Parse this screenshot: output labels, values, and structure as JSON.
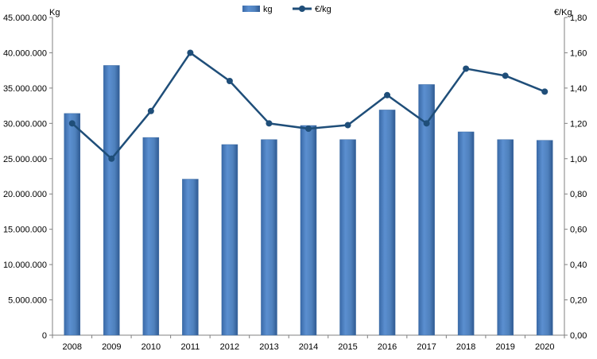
{
  "chart_data": {
    "type": "bar",
    "categories": [
      "2008",
      "2009",
      "2010",
      "2011",
      "2012",
      "2013",
      "2014",
      "2015",
      "2016",
      "2017",
      "2018",
      "2019",
      "2020"
    ],
    "series": [
      {
        "name": "kg",
        "type": "bar",
        "axis": "left",
        "color": "#4f81bd",
        "values": [
          31400000,
          38200000,
          28000000,
          22100000,
          27000000,
          27700000,
          29700000,
          27700000,
          31900000,
          35500000,
          28800000,
          27700000,
          27600000
        ]
      },
      {
        "name": "€/kg",
        "type": "line",
        "axis": "right",
        "color": "#1f4e79",
        "values": [
          1.2,
          1.0,
          1.27,
          1.6,
          1.44,
          1.2,
          1.17,
          1.19,
          1.36,
          1.2,
          1.51,
          1.47,
          1.38
        ]
      }
    ],
    "left_axis": {
      "unit_label": "Kg",
      "ylim": [
        0,
        45000000
      ],
      "ticks": [
        0,
        5000000,
        10000000,
        15000000,
        20000000,
        25000000,
        30000000,
        35000000,
        40000000,
        45000000
      ],
      "tick_labels": [
        "0",
        "5.000.000",
        "10.000.000",
        "15.000.000",
        "20.000.000",
        "25.000.000",
        "30.000.000",
        "35.000.000",
        "40.000.000",
        "45.000.000"
      ]
    },
    "right_axis": {
      "unit_label": "€/Kg",
      "ylim": [
        0,
        1.8
      ],
      "ticks": [
        0,
        0.2,
        0.4,
        0.6,
        0.8,
        1.0,
        1.2,
        1.4,
        1.6,
        1.8
      ],
      "tick_labels": [
        "0,00",
        "0,20",
        "0,40",
        "0,60",
        "0,80",
        "1,00",
        "1,20",
        "1,40",
        "1,60",
        "1,80"
      ]
    },
    "title": "",
    "xlabel": "",
    "grid": false,
    "legend_position": "top-center"
  }
}
